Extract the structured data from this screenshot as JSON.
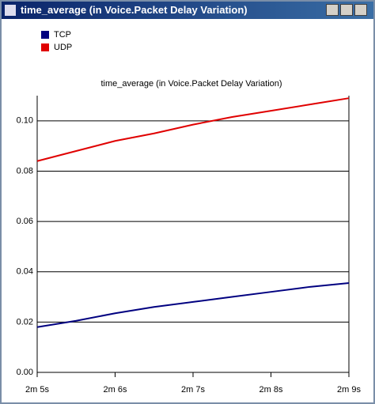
{
  "window_title": "time_average (in Voice.Packet Delay Variation)",
  "chart_data": {
    "type": "line",
    "title": "time_average (in Voice.Packet Delay Variation)",
    "x": [
      125,
      125.5,
      126,
      126.5,
      127,
      127.5,
      128,
      128.5,
      129
    ],
    "series": [
      {
        "name": "TCP",
        "color": "#000080",
        "values": [
          0.018,
          0.0205,
          0.0235,
          0.026,
          0.028,
          0.03,
          0.032,
          0.034,
          0.0355
        ]
      },
      {
        "name": "UDP",
        "color": "#e00000",
        "values": [
          0.084,
          0.088,
          0.092,
          0.095,
          0.0985,
          0.1015,
          0.104,
          0.1065,
          0.109
        ]
      }
    ],
    "xlim": [
      125,
      129
    ],
    "xticks": [
      {
        "value": 125,
        "label": "2m 5s"
      },
      {
        "value": 126,
        "label": "2m 6s"
      },
      {
        "value": 127,
        "label": "2m 7s"
      },
      {
        "value": 128,
        "label": "2m 8s"
      },
      {
        "value": 129,
        "label": "2m 9s"
      }
    ],
    "ylim": [
      0,
      0.11
    ],
    "yticks": [
      {
        "value": 0,
        "label": "0.00"
      },
      {
        "value": 0.02,
        "label": "0.02"
      },
      {
        "value": 0.04,
        "label": "0.04"
      },
      {
        "value": 0.06,
        "label": "0.06"
      },
      {
        "value": 0.08,
        "label": "0.08"
      },
      {
        "value": 0.1,
        "label": "0.10"
      }
    ],
    "grid": true,
    "legend": "top-left"
  }
}
